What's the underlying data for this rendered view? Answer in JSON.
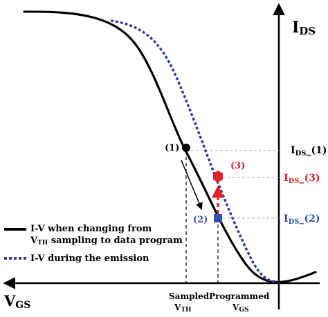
{
  "chart_data": {
    "type": "line",
    "axes": {
      "x_label": "V",
      "x_label_sub": "GS",
      "y_label": "I",
      "y_label_sub": "DS",
      "x_direction": "increasing-left"
    },
    "series": [
      {
        "name": "I-V when changing from V_TH sampling to data program",
        "legend_line1": "I-V when changing from",
        "legend_line2_pre": "V",
        "legend_line2_sub": "TH",
        "legend_line2_post": " sampling to data program",
        "style": "solid",
        "color": "#000000"
      },
      {
        "name": "I-V during the emission",
        "legend_line1": "I-V during the emission",
        "style": "dotted",
        "color": "#2e3f9e"
      }
    ],
    "points": [
      {
        "id": "p1",
        "label": "(1)",
        "color": "#000000",
        "shape": "circle",
        "series": 0
      },
      {
        "id": "p2",
        "label": "(2)",
        "color": "#2f4fb0",
        "shape": "square",
        "series": 1
      },
      {
        "id": "p3",
        "label": "(3)",
        "color": "#e0202a",
        "shape": "hexagon",
        "series": 1
      }
    ],
    "x_markers": [
      {
        "line1": "Sampled",
        "line2_pre": "V",
        "line2_sub": "TH"
      },
      {
        "line1": "Programmed",
        "line2_pre": "V",
        "line2_sub": "GS"
      }
    ],
    "y_markers": [
      {
        "pre": "I",
        "sub": "DS",
        "post": "_(1)",
        "color": "#000000"
      },
      {
        "pre": "I",
        "sub": "DS",
        "post": "_(3)",
        "color": "#d9232b"
      },
      {
        "pre": "I",
        "sub": "DS",
        "post": "_(2)",
        "color": "#2f4fb0"
      }
    ],
    "colors": {
      "axis": "#000000",
      "guide": "#a8a8a8",
      "arrow_red": "#e0202a"
    }
  }
}
